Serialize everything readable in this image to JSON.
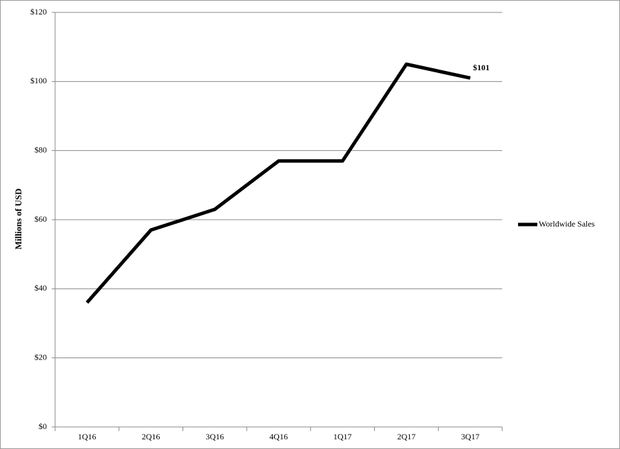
{
  "chart_data": {
    "type": "line",
    "y_label": "Millions of USD",
    "categories": [
      "1Q16",
      "2Q16",
      "3Q16",
      "4Q16",
      "1Q17",
      "2Q17",
      "3Q17"
    ],
    "series": [
      {
        "name": "Worldwide Sales",
        "color": "#000000",
        "values": [
          36,
          57,
          63,
          77,
          77,
          105,
          101
        ],
        "value_labels": [
          null,
          null,
          null,
          null,
          null,
          null,
          "$101"
        ]
      }
    ],
    "ylim": [
      0,
      120
    ],
    "yticks": [
      {
        "value": 0,
        "label": "$0"
      },
      {
        "value": 20,
        "label": "$20"
      },
      {
        "value": 40,
        "label": "$40"
      },
      {
        "value": 60,
        "label": "$60"
      },
      {
        "value": 80,
        "label": "$80"
      },
      {
        "value": 100,
        "label": "$100"
      },
      {
        "value": 120,
        "label": "$120"
      }
    ],
    "grid": true,
    "legend": "right"
  }
}
